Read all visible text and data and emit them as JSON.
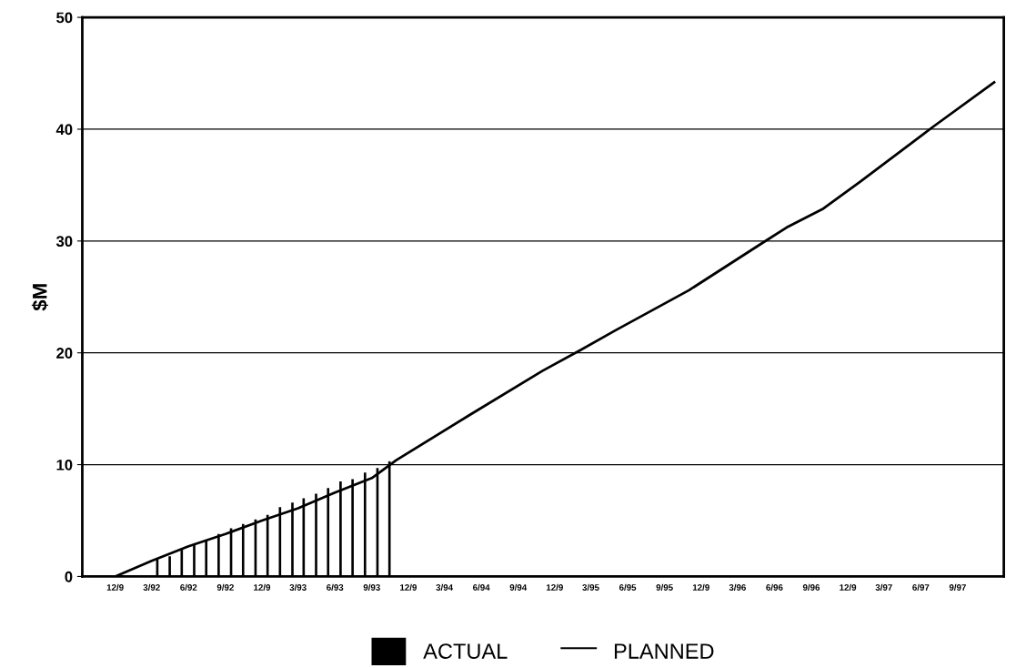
{
  "chart_data": {
    "type": "bar",
    "ylabel": "$M",
    "xlim": [
      "1991-09-10",
      "1997-12-25"
    ],
    "xticks": [
      {
        "value": "1991-12",
        "label": "12/9"
      },
      {
        "value": "1992-03",
        "label": "3/92"
      },
      {
        "value": "1992-06",
        "label": "6/92"
      },
      {
        "value": "1992-09",
        "label": "9/92"
      },
      {
        "value": "1992-12",
        "label": "12/9"
      },
      {
        "value": "1993-03",
        "label": "3/93"
      },
      {
        "value": "1993-06",
        "label": "6/93"
      },
      {
        "value": "1993-09",
        "label": "9/93"
      },
      {
        "value": "1993-12",
        "label": "12/9"
      },
      {
        "value": "1994-03",
        "label": "3/94"
      },
      {
        "value": "1994-06",
        "label": "6/94"
      },
      {
        "value": "1994-09",
        "label": "9/94"
      },
      {
        "value": "1994-12",
        "label": "12/9"
      },
      {
        "value": "1995-03",
        "label": "3/95"
      },
      {
        "value": "1995-06",
        "label": "6/95"
      },
      {
        "value": "1995-09",
        "label": "9/95"
      },
      {
        "value": "1995-12",
        "label": "12/9"
      },
      {
        "value": "1996-03",
        "label": "3/96"
      },
      {
        "value": "1996-06",
        "label": "6/96"
      },
      {
        "value": "1996-09",
        "label": "9/96"
      },
      {
        "value": "1996-12",
        "label": "12/9"
      },
      {
        "value": "1997-03",
        "label": "3/97"
      },
      {
        "value": "1997-06",
        "label": "6/97"
      },
      {
        "value": "1997-09",
        "label": "9/97"
      }
    ],
    "ylim": [
      0,
      50
    ],
    "yticks": [
      0,
      10,
      20,
      30,
      40,
      50
    ],
    "grid": "y",
    "legend": "bottom",
    "series": [
      {
        "name": "ACTUAL",
        "color": "#000000",
        "x": [
          "1992-03-15",
          "1992-04-15",
          "1992-05-15",
          "1992-06-15",
          "1992-07-15",
          "1992-08-15",
          "1992-09-15",
          "1992-10-15",
          "1992-11-15",
          "1992-12-15",
          "1993-01-15",
          "1993-02-15",
          "1993-03-15",
          "1993-04-15",
          "1993-05-15",
          "1993-06-15",
          "1993-07-15",
          "1993-08-15",
          "1993-09-15",
          "1993-10-15"
        ],
        "values": [
          1.5,
          1.8,
          2.4,
          2.9,
          3.3,
          3.8,
          4.3,
          4.7,
          5.1,
          5.5,
          6.2,
          6.6,
          7.0,
          7.4,
          7.9,
          8.5,
          8.7,
          9.3,
          9.7,
          10.3
        ]
      },
      {
        "name": "PLANNED",
        "type": "line",
        "color": "#000000",
        "x": [
          "1991-09-10",
          "1991-12-01",
          "1992-03-01",
          "1992-06-01",
          "1992-09-01",
          "1992-12-01",
          "1993-03-01",
          "1993-06-01",
          "1993-09-01",
          "1993-11-01",
          "1994-05-01",
          "1994-11-01",
          "1995-02-01",
          "1995-05-01",
          "1995-11-01",
          "1996-05-01",
          "1996-07-01",
          "1996-10-01",
          "1997-01-01",
          "1997-07-01",
          "1997-12-01"
        ],
        "values": [
          0,
          0,
          1.4,
          2.7,
          3.8,
          5.0,
          6.1,
          7.5,
          8.8,
          10.4,
          14.4,
          18.4,
          20.2,
          22.0,
          25.6,
          29.8,
          31.2,
          32.9,
          35.3,
          40.2,
          44.2
        ]
      }
    ]
  }
}
